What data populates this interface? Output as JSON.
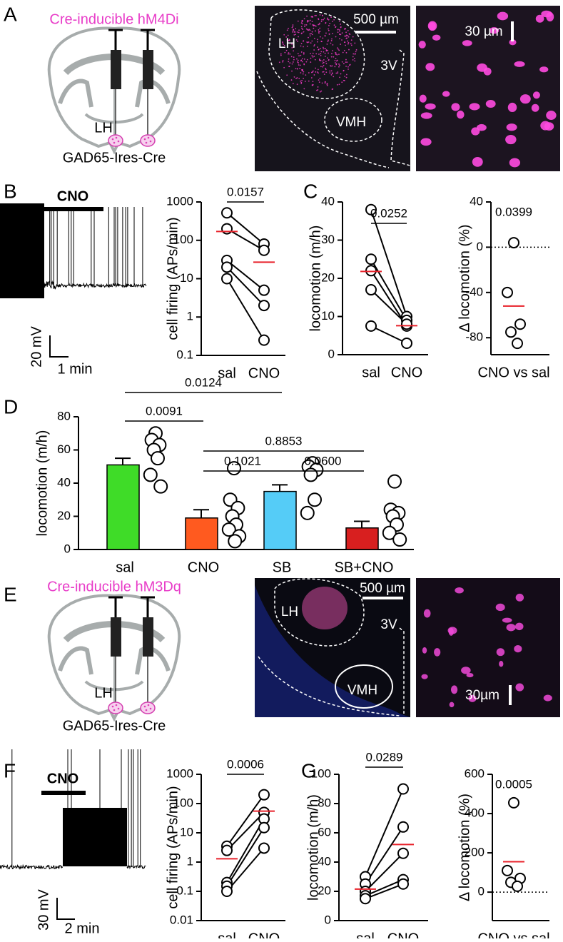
{
  "panel_labels": [
    "A",
    "B",
    "C",
    "D",
    "E",
    "F",
    "G"
  ],
  "schematics": [
    {
      "title": "Cre-inducible hM4Di",
      "region": "LH",
      "mouse": "GAD65-Ires-Cre"
    },
    {
      "title": "Cre-inducible hM3Dq",
      "region": "LH",
      "mouse": "GAD65-Ires-Cre"
    }
  ],
  "micrographs": [
    {
      "scale_bar": "500 µm",
      "regions": [
        "LH",
        "3V",
        "VMH"
      ]
    },
    {
      "scale_bar": "30 µm"
    },
    {
      "scale_bar": "500 µm",
      "regions": [
        "LH",
        "3V",
        "VMH"
      ]
    },
    {
      "scale_bar": "30µm"
    }
  ],
  "traces": [
    {
      "drug": "CNO",
      "voltage_scale": "20 mV",
      "time_scale": "1 min"
    },
    {
      "drug": "CNO",
      "voltage_scale": "30 mV",
      "time_scale": "2 min"
    }
  ],
  "chart_data": [
    {
      "type": "paired",
      "y_label": "cell firing (APs/min)",
      "categories": [
        "sal",
        "CNO"
      ],
      "log_scale": true,
      "ylim": [
        0.1,
        1000
      ],
      "yticks": [
        0.1,
        1,
        10,
        100,
        1000
      ],
      "series": [
        {
          "values": [
            520,
            80
          ]
        },
        {
          "values": [
            200,
            55
          ]
        },
        {
          "values": [
            30,
            5
          ]
        },
        {
          "values": [
            20,
            2
          ]
        },
        {
          "values": [
            10,
            0.25
          ]
        }
      ],
      "mean": {
        "values": [
          170,
          27
        ],
        "color": "#e8212a"
      },
      "annotation": "0.0157"
    },
    {
      "type": "paired",
      "y_label": "locomotion (m/h)",
      "categories": [
        "sal",
        "CNO"
      ],
      "log_scale": false,
      "ylim": [
        0,
        40
      ],
      "yticks": [
        0,
        10,
        20,
        30,
        40
      ],
      "series": [
        {
          "values": [
            38,
            10
          ]
        },
        {
          "values": [
            25,
            9
          ]
        },
        {
          "values": [
            22,
            7.5
          ]
        },
        {
          "values": [
            17,
            8
          ]
        },
        {
          "values": [
            7.5,
            3
          ]
        }
      ],
      "mean": {
        "values": [
          21.8,
          7.6
        ],
        "color": "#e8212a"
      },
      "annotation": "0.0252"
    },
    {
      "type": "strip",
      "y_label": "Δ locomotion (%)",
      "categories": [
        "CNO vs sal"
      ],
      "log_scale": false,
      "ylim": [
        -95,
        40
      ],
      "yticks": [
        -80,
        -40,
        0,
        40
      ],
      "reference_line": 0,
      "values": [
        4,
        -40,
        -68,
        -75,
        -85
      ],
      "mean": {
        "values": [
          -52
        ],
        "color": "#e8212a"
      },
      "annotation": "0.0399"
    },
    {
      "type": "bar",
      "y_label": "locomotion (m/h)",
      "categories": [
        "sal",
        "CNO",
        "SB",
        "SB+CNO"
      ],
      "log_scale": false,
      "ylim": [
        0,
        80
      ],
      "yticks": [
        0,
        20,
        40,
        60,
        80
      ],
      "values": [
        51,
        19,
        35,
        13
      ],
      "errors": [
        4,
        5,
        4,
        4
      ],
      "colors": [
        "#3fdc28",
        "#ff5a1f",
        "#55ccf7",
        "#d81f1f"
      ],
      "points": [
        [
          70,
          66,
          63,
          60,
          55,
          45,
          38
        ],
        [
          49,
          30,
          25,
          20,
          15,
          12,
          8,
          5
        ],
        [
          52,
          50,
          48,
          45,
          30,
          22
        ],
        [
          41,
          24,
          22,
          20,
          15,
          10,
          6
        ]
      ],
      "comparisons": [
        {
          "between": [
            0,
            2
          ],
          "label": "0.0124"
        },
        {
          "between": [
            0,
            1
          ],
          "label": "0.0091"
        },
        {
          "between": [
            1,
            3
          ],
          "label": "0.8853"
        },
        {
          "between": [
            1,
            2
          ],
          "label": "0.1021"
        },
        {
          "between": [
            2,
            3
          ],
          "label": "0.0600"
        }
      ]
    },
    {
      "type": "paired",
      "y_label": "cell firing (APs/min)",
      "categories": [
        "sal",
        "CNO"
      ],
      "log_scale": true,
      "ylim": [
        0.01,
        1000
      ],
      "yticks": [
        0.01,
        0.1,
        1,
        10,
        100,
        1000
      ],
      "series": [
        {
          "values": [
            3.5,
            200
          ]
        },
        {
          "values": [
            2.5,
            50
          ]
        },
        {
          "values": [
            0.2,
            30
          ]
        },
        {
          "values": [
            0.15,
            15
          ]
        },
        {
          "values": [
            0.1,
            3
          ]
        }
      ],
      "mean": {
        "values": [
          1.3,
          55
        ],
        "color": "#e8212a"
      },
      "annotation": "0.0006"
    },
    {
      "type": "paired",
      "y_label": "locomotion (m/h)",
      "categories": [
        "sal",
        "CNO"
      ],
      "log_scale": false,
      "ylim": [
        0,
        100
      ],
      "yticks": [
        0,
        20,
        40,
        60,
        80,
        100
      ],
      "series": [
        {
          "values": [
            30,
            90
          ]
        },
        {
          "values": [
            25,
            64
          ]
        },
        {
          "values": [
            20,
            46
          ]
        },
        {
          "values": [
            17,
            28
          ]
        },
        {
          "values": [
            15,
            25
          ]
        }
      ],
      "mean": {
        "values": [
          21.5,
          52
        ],
        "color": "#e8212a"
      },
      "annotation": "0.0289"
    },
    {
      "type": "strip",
      "y_label": "Δ locomotion (%)",
      "categories": [
        "CNO vs sal"
      ],
      "log_scale": false,
      "ylim": [
        -145,
        600
      ],
      "yticks": [
        0,
        200,
        400,
        600
      ],
      "reference_line": 0,
      "values": [
        455,
        110,
        70,
        50,
        30
      ],
      "mean": {
        "values": [
          155
        ],
        "color": "#e8212a"
      },
      "annotation": "0.0005"
    }
  ]
}
